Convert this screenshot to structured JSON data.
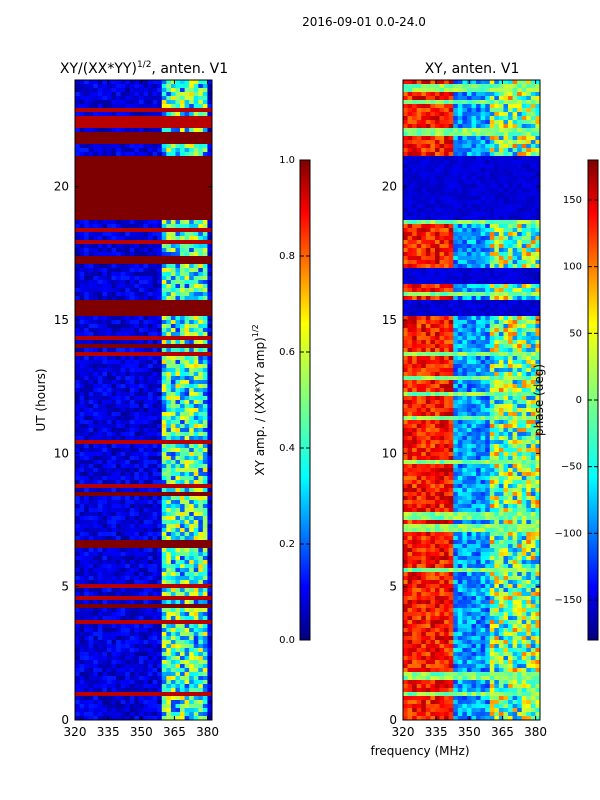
{
  "figure": {
    "suptitle": "2016-09-01 0.0-24.0"
  },
  "colors": {
    "jet": [
      "#00007f",
      "#0000ff",
      "#007fff",
      "#00ffff",
      "#7fff7f",
      "#ffff00",
      "#ff7f00",
      "#ff0000",
      "#7f0000"
    ]
  },
  "chart_data": [
    {
      "type": "heatmap",
      "title": "XY/(XX*YY)",
      "title_sup": "1/2",
      "title_suffix": ", anten. V1",
      "xlabel": "",
      "ylabel": "UT (hours)",
      "xlim": [
        320,
        382
      ],
      "ylim": [
        0,
        24
      ],
      "xticks": [
        320,
        335,
        350,
        365,
        380
      ],
      "yticks": [
        0,
        5,
        10,
        15,
        20
      ],
      "colorbar": {
        "label": "XY amp. / (XX*YY amp)",
        "label_sup": "1/2",
        "range": [
          0.0,
          1.0
        ],
        "ticks": [
          "0.0",
          "0.2",
          "0.4",
          "0.6",
          "0.8",
          "1.0"
        ]
      },
      "description_bands": {
        "saturated_rows_hours": [
          [
            15.2,
            15.8
          ],
          [
            17.1,
            17.4
          ],
          [
            18.7,
            21.2
          ],
          [
            21.6,
            22.0
          ],
          [
            13.9,
            14.1
          ],
          [
            8.4,
            8.6
          ],
          [
            6.5,
            6.7
          ],
          [
            4.2,
            4.4
          ]
        ],
        "bright_freq_band_mhz": [
          360,
          380
        ]
      }
    },
    {
      "type": "heatmap",
      "title": "XY, anten. V1",
      "xlabel": "frequency (MHz)",
      "ylabel": "",
      "xlim": [
        320,
        382
      ],
      "ylim": [
        0,
        24
      ],
      "xticks": [
        320,
        335,
        350,
        365,
        380
      ],
      "yticks": [
        0,
        5,
        10,
        15,
        20
      ],
      "colorbar": {
        "label": "phase (deg)",
        "range": [
          -180,
          180
        ],
        "ticks": [
          "150",
          "100",
          "50",
          "0",
          "−50",
          "−100",
          "−150"
        ]
      },
      "description_bands": {
        "high_phase_freq_band_mhz": [
          320,
          342
        ],
        "dark_rows_hours": [
          [
            18.7,
            21.2
          ],
          [
            15.2,
            15.8
          ],
          [
            16.3,
            17.0
          ]
        ]
      }
    }
  ]
}
